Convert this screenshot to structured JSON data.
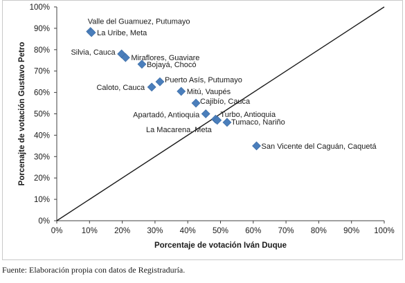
{
  "chart_data": {
    "type": "scatter",
    "xlabel": "Porcentaje de votación Iván Duque",
    "ylabel": "Porcenajte de votación Gustavo Petro",
    "xlim": [
      0,
      100
    ],
    "ylim": [
      0,
      100
    ],
    "x_ticks": [
      "0%",
      "10%",
      "20%",
      "30%",
      "40%",
      "50%",
      "60%",
      "70%",
      "80%",
      "90%",
      "100%"
    ],
    "y_ticks": [
      "0%",
      "10%",
      "20%",
      "30%",
      "40%",
      "50%",
      "60%",
      "70%",
      "80%",
      "90%",
      "100%"
    ],
    "reference_line": {
      "from": [
        0,
        0
      ],
      "to": [
        100,
        100
      ]
    },
    "grid": false,
    "marker_color": "#4a7ebb",
    "points": [
      {
        "label": "Valle del Guamuez, Putumayo",
        "x": 10.3,
        "y": 88.5
      },
      {
        "label": "La Uribe, Meta",
        "x": 10.6,
        "y": 88.0
      },
      {
        "label": "Silvia, Cauca",
        "x": 19.8,
        "y": 78.0
      },
      {
        "label": "Miraflores, Guaviare",
        "x": 21.0,
        "y": 76.3
      },
      {
        "label": "Bojayá, Chocó",
        "x": 26.0,
        "y": 73.2
      },
      {
        "label": "Puerto Asís, Putumayo",
        "x": 31.5,
        "y": 65.0
      },
      {
        "label": "Caloto, Cauca",
        "x": 29.0,
        "y": 62.5
      },
      {
        "label": "Mitú, Vaupés",
        "x": 38.0,
        "y": 60.5
      },
      {
        "label": "Cajibío, Cauca",
        "x": 42.5,
        "y": 55.0
      },
      {
        "label": "Turbo, Antioquia",
        "x": 48.5,
        "y": 47.5
      },
      {
        "label": "Apartadó, Antioquia",
        "x": 45.5,
        "y": 50.0
      },
      {
        "label": "Tumaco, Nariño",
        "x": 52.0,
        "y": 46.0
      },
      {
        "label": "La Macarena, Meta",
        "x": 49.0,
        "y": 47.0
      },
      {
        "label": "San Vicente del Caguán, Caquetá",
        "x": 61.0,
        "y": 35.0
      }
    ]
  },
  "footer": {
    "source": "Fuente: Elaboración propia con datos de Registraduría."
  }
}
